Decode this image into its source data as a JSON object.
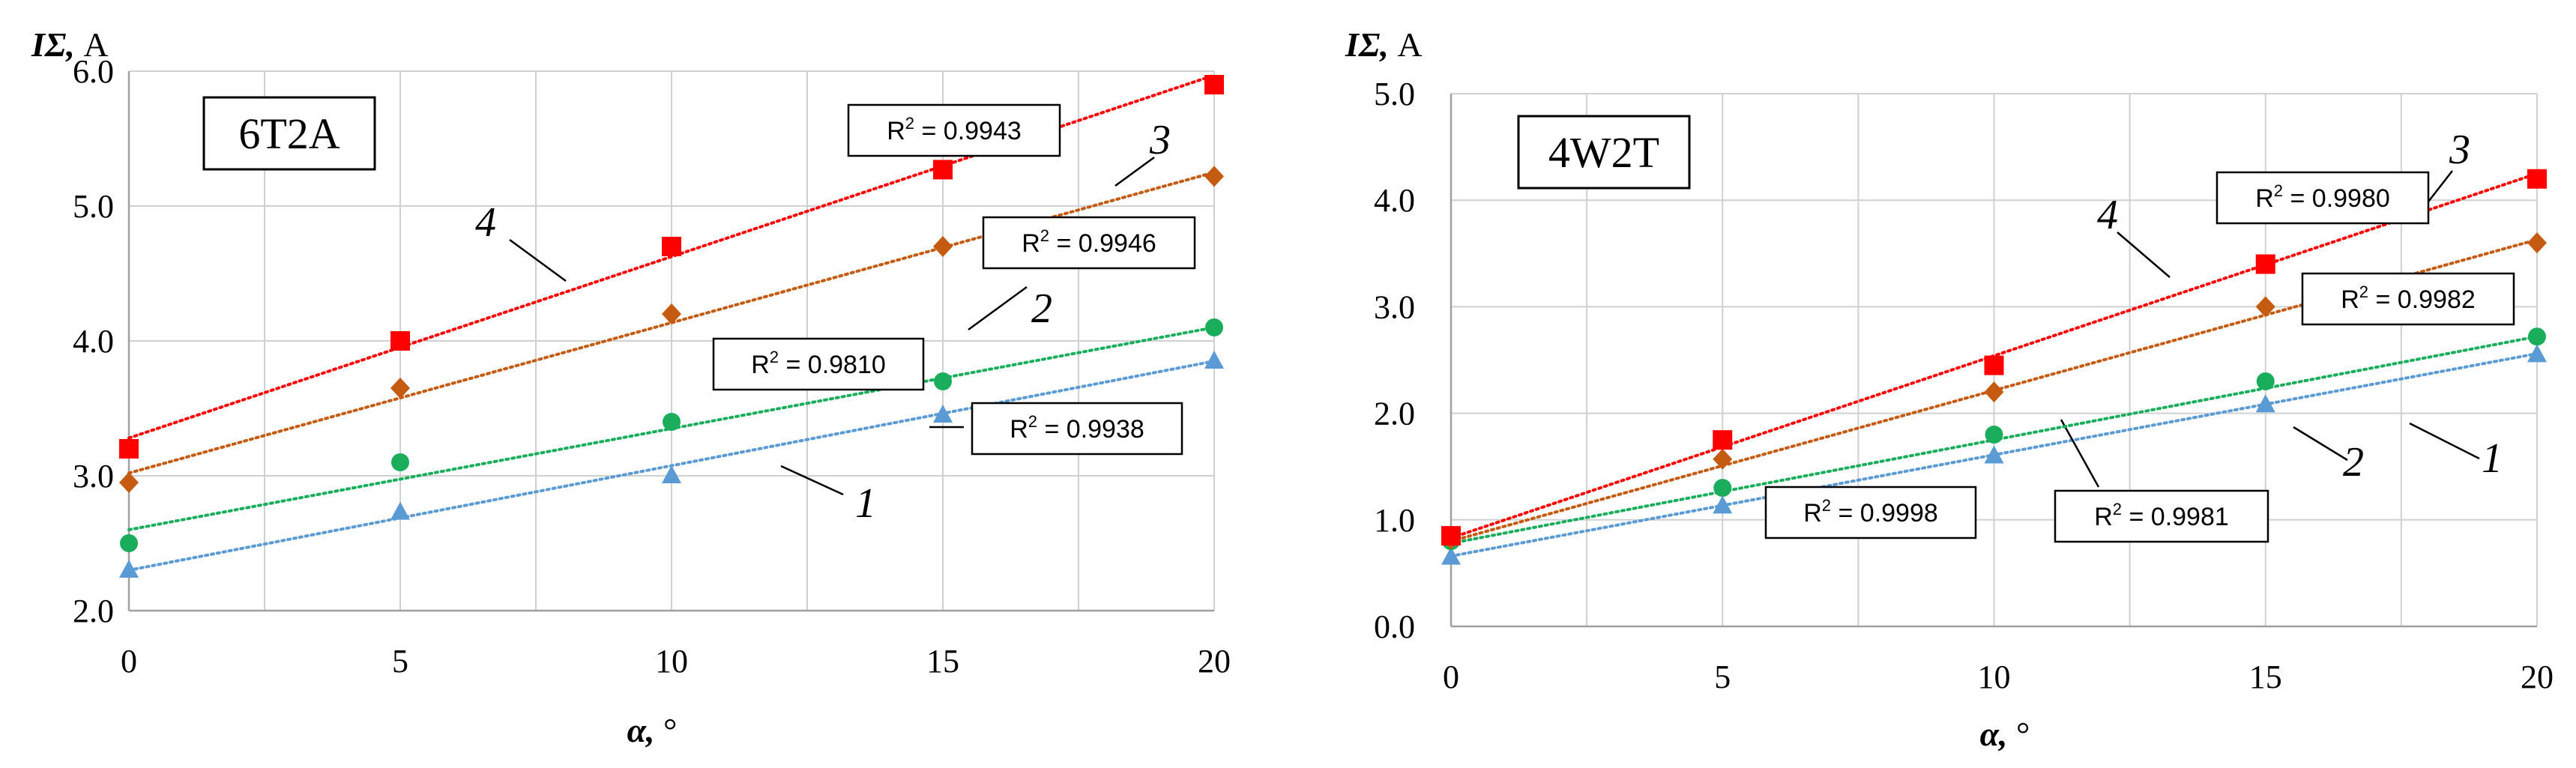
{
  "chart_data": [
    {
      "type": "scatter",
      "title": "6T2A",
      "xlabel": "α, °",
      "ylabel": "IΣ, A",
      "xlim": [
        0,
        20
      ],
      "ylim": [
        2.0,
        6.0
      ],
      "x_ticks": [
        0,
        5,
        10,
        15,
        20
      ],
      "y_ticks": [
        2.0,
        3.0,
        4.0,
        5.0,
        6.0
      ],
      "x_tick_labels": [
        "0",
        "5",
        "10",
        "15",
        "20"
      ],
      "y_tick_labels": [
        "2.0",
        "3.0",
        "4.0",
        "5.0",
        "6.0"
      ],
      "x_minor_grid": [
        2.5,
        7.5,
        12.5,
        17.5
      ],
      "x": [
        0,
        5,
        10,
        15,
        20
      ],
      "series": [
        {
          "name": "1",
          "label": "1",
          "marker": "triangle",
          "color": "#5b9bd5",
          "values": [
            2.3,
            2.73,
            3.0,
            3.45,
            3.85
          ],
          "trend": [
            2.3,
            3.85
          ],
          "r2": "R2 = 0.9938"
        },
        {
          "name": "2",
          "label": "2",
          "marker": "circle",
          "color": "#1aae5c",
          "values": [
            2.5,
            3.1,
            3.4,
            3.7,
            4.1
          ],
          "trend": [
            2.6,
            4.1
          ],
          "r2": "R2 = 0.9810"
        },
        {
          "name": "3",
          "label": "3",
          "marker": "diamond",
          "color": "#c55a11",
          "values": [
            2.95,
            3.65,
            4.2,
            4.7,
            5.22
          ],
          "trend": [
            3.02,
            5.25
          ],
          "r2": "R2 = 0.9946"
        },
        {
          "name": "4",
          "label": "4",
          "marker": "square",
          "color": "#ff0000",
          "values": [
            3.2,
            4.0,
            4.7,
            5.27,
            5.9
          ],
          "trend": [
            3.28,
            5.97
          ],
          "r2": "R2 = 0.9943"
        }
      ]
    },
    {
      "type": "scatter",
      "title": "4W2T",
      "xlabel": "α, °",
      "ylabel": "IΣ, A",
      "xlim": [
        0,
        20
      ],
      "ylim": [
        0.0,
        5.0
      ],
      "x_ticks": [
        0,
        5,
        10,
        15,
        20
      ],
      "y_ticks": [
        0.0,
        1.0,
        2.0,
        3.0,
        4.0,
        5.0
      ],
      "x_tick_labels": [
        "0",
        "5",
        "10",
        "15",
        "20"
      ],
      "y_tick_labels": [
        "0.0",
        "1.0",
        "2.0",
        "3.0",
        "4.0",
        "5.0"
      ],
      "x_minor_grid": [
        2.5,
        7.5,
        12.5,
        17.5
      ],
      "x": [
        0,
        5,
        10,
        15,
        20
      ],
      "series": [
        {
          "name": "1",
          "label": "1",
          "marker": "triangle",
          "color": "#5b9bd5",
          "values": [
            0.65,
            1.13,
            1.6,
            2.08,
            2.55
          ],
          "trend": [
            0.66,
            2.56
          ],
          "r2": "R2 = 0.9981"
        },
        {
          "name": "2",
          "label": "2",
          "marker": "circle",
          "color": "#1aae5c",
          "values": [
            0.8,
            1.3,
            1.8,
            2.3,
            2.72
          ],
          "trend": [
            0.78,
            2.72
          ],
          "r2": "R2 = 0.9998"
        },
        {
          "name": "3",
          "label": "3",
          "marker": "diamond",
          "color": "#c55a11",
          "values": [
            0.82,
            1.57,
            2.2,
            3.0,
            3.6
          ],
          "trend": [
            0.8,
            3.63
          ],
          "r2": "R2 = 0.9982"
        },
        {
          "name": "4",
          "label": "4",
          "marker": "square",
          "color": "#ff0000",
          "values": [
            0.85,
            1.75,
            2.45,
            3.4,
            4.2
          ],
          "trend": [
            0.83,
            4.25
          ],
          "r2": "R2 = 0.9980"
        }
      ]
    }
  ]
}
